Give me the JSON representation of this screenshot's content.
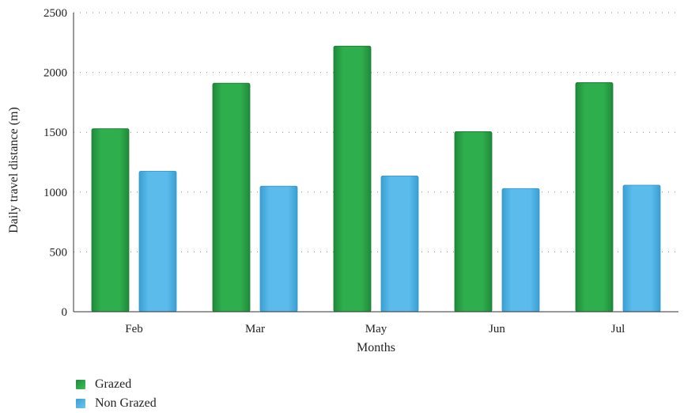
{
  "chart_data": {
    "type": "bar",
    "title": "",
    "xlabel": "Months",
    "ylabel": "Daily travel distance (m)",
    "categories": [
      "Feb",
      "Mar",
      "May",
      "Jun",
      "Jul"
    ],
    "series": [
      {
        "name": "Grazed",
        "color": "#2ea84a",
        "values": [
          1530,
          1910,
          2220,
          1505,
          1915
        ]
      },
      {
        "name": "Non Grazed",
        "color": "#52b5e6",
        "values": [
          1175,
          1050,
          1135,
          1030,
          1058
        ]
      }
    ],
    "ylim": [
      0,
      2500
    ],
    "yticks": [
      "0",
      "500",
      "1000",
      "1500",
      "2000",
      "2500"
    ],
    "grid": "horizontal-dotted",
    "legend": "bottom-left"
  }
}
